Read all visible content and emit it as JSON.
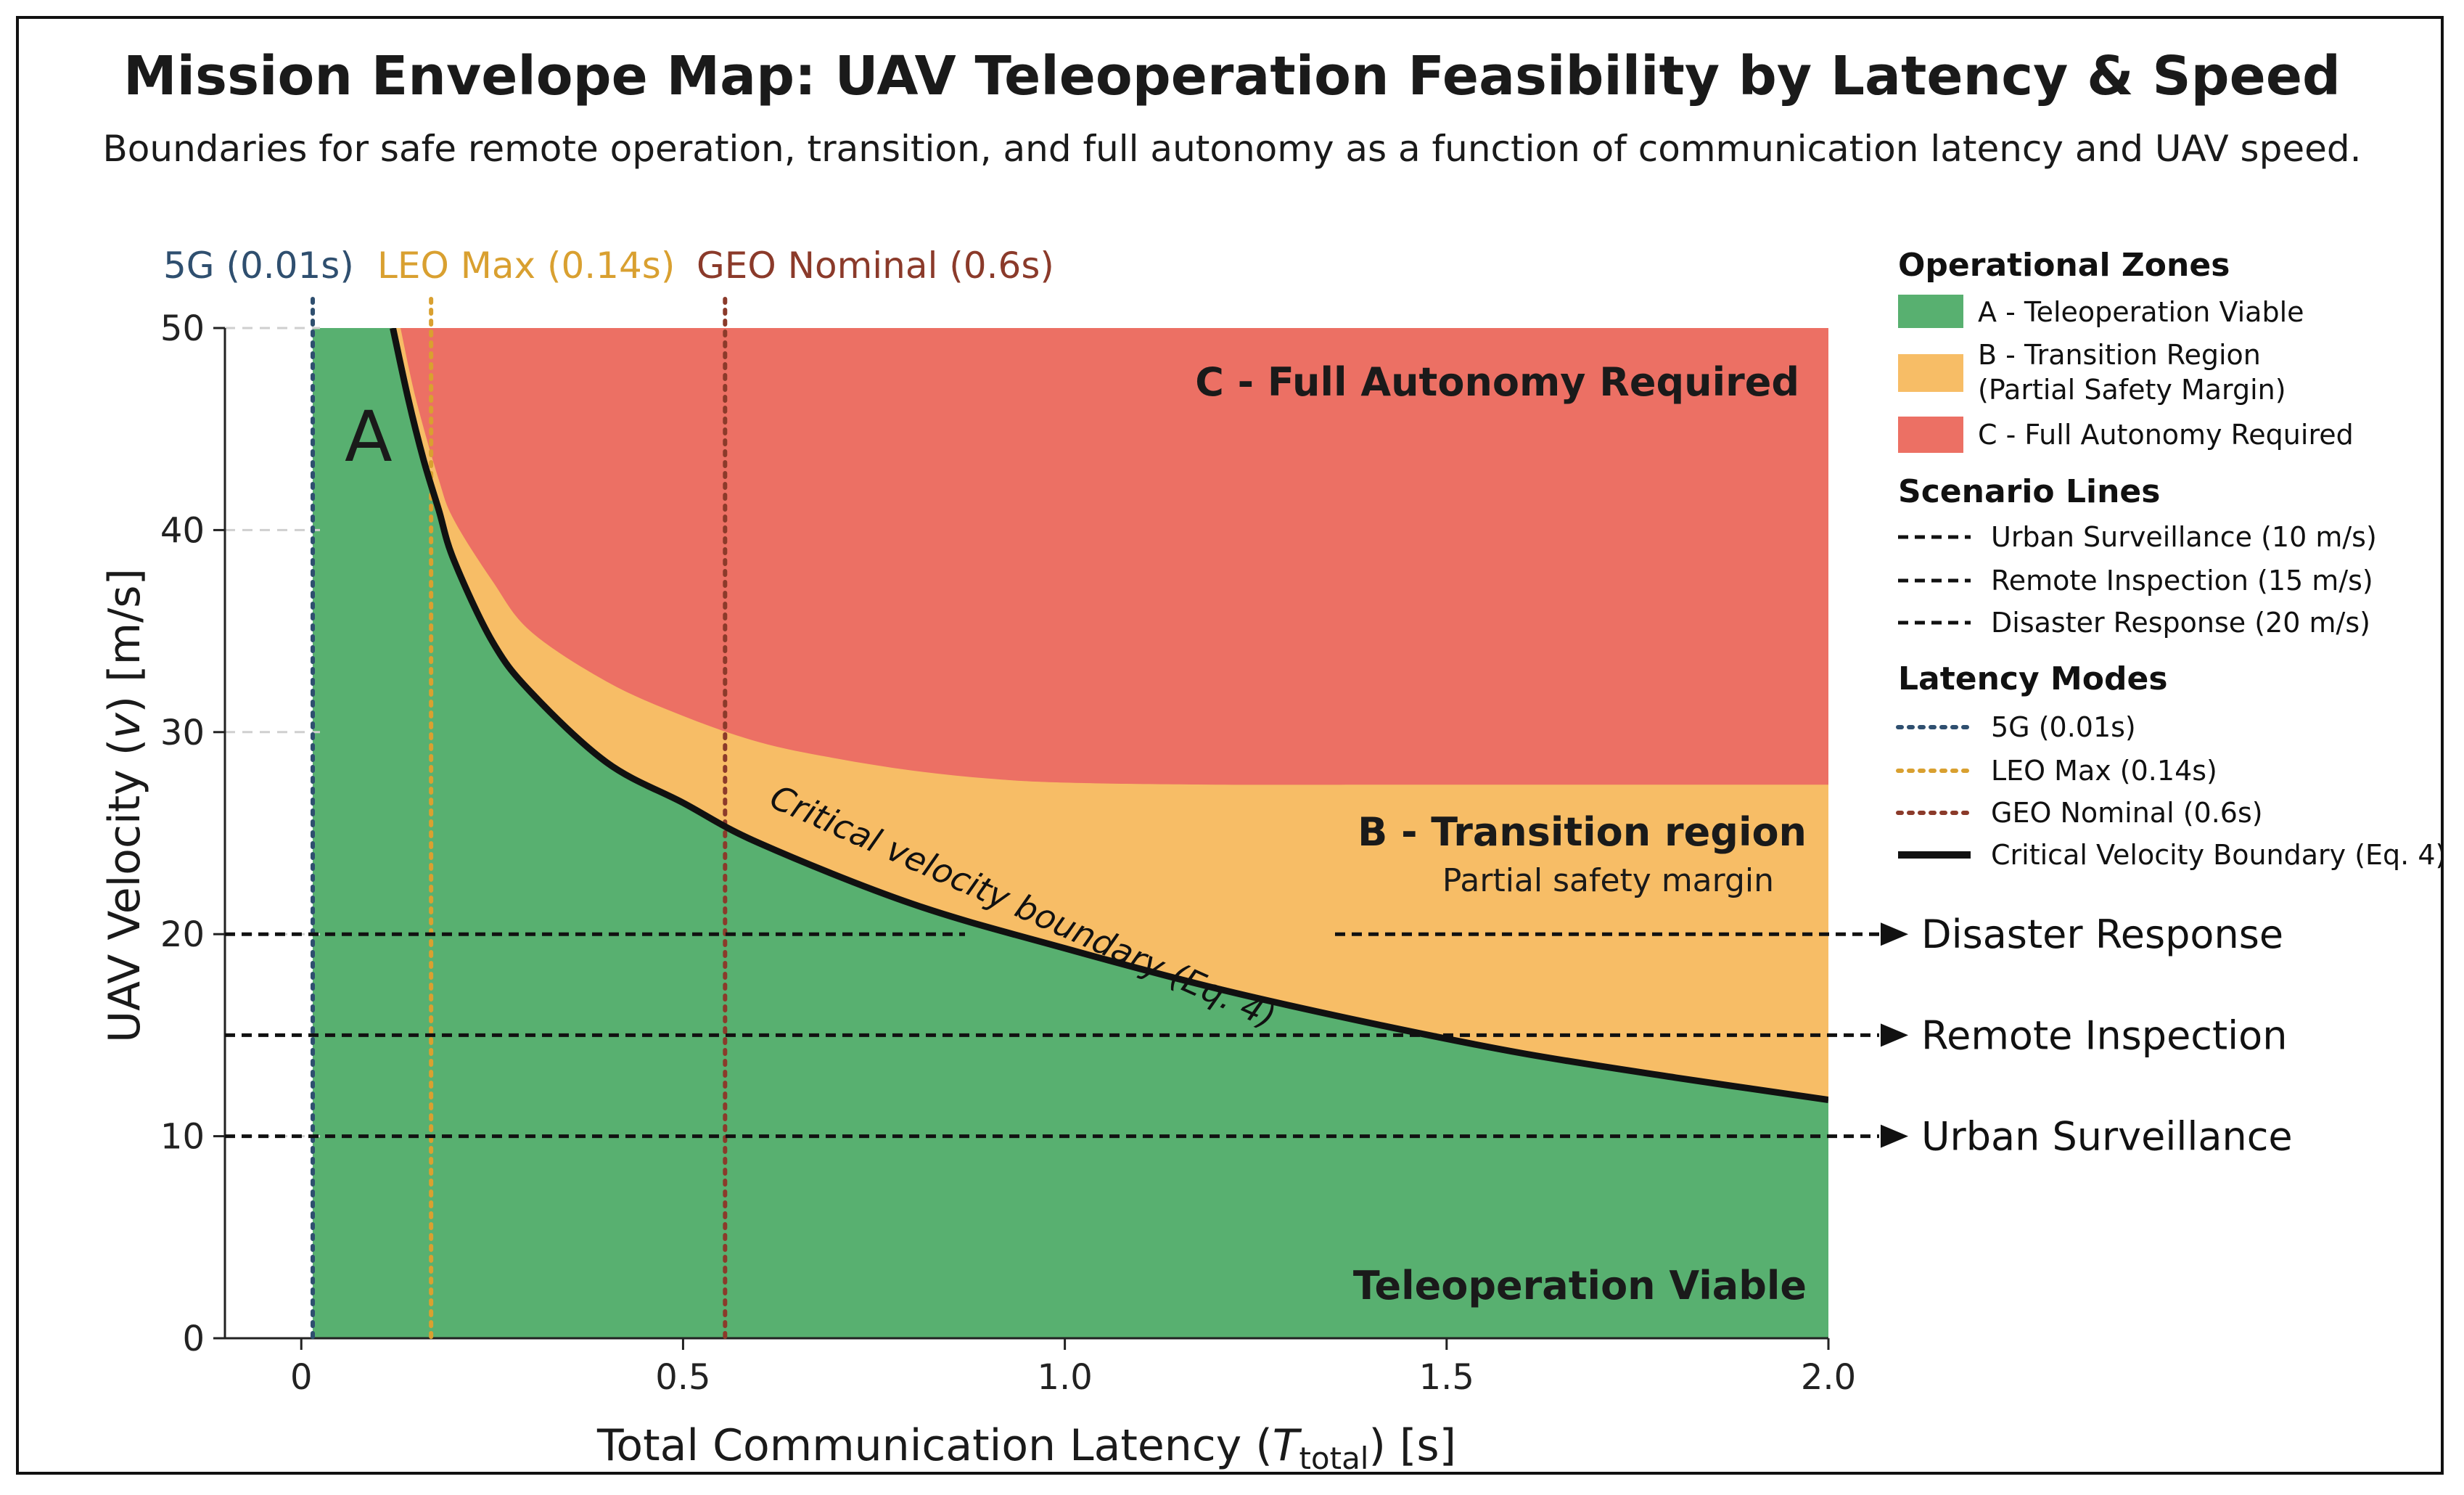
{
  "chart_data": {
    "type": "area",
    "title": "Mission Envelope Map: UAV Teleoperation Feasibility by Latency & Speed",
    "subtitle": "Boundaries for safe remote operation, transition, and full autonomy as a function of communication latency and UAV speed.",
    "xlabel_main": "Total Communication Latency (",
    "xlabel_var": "T",
    "xlabel_sub": "total",
    "xlabel_end": ") [s]",
    "ylabel_main": "UAV Velocity (",
    "ylabel_var": "v",
    "ylabel_end": ") [m/s]",
    "xlim": [
      -0.1,
      2.0
    ],
    "ylim": [
      0,
      50
    ],
    "xticks": [
      0,
      0.5,
      1.0,
      1.5,
      2.0
    ],
    "xtick_labels": [
      "0",
      "0.5",
      "1.0",
      "1.5",
      "2.0"
    ],
    "yticks": [
      0,
      10,
      20,
      30,
      40,
      50
    ],
    "ytick_labels": [
      "0",
      "10",
      "20",
      "30",
      "40",
      "50"
    ],
    "grid": "horizontal-dashed",
    "latency_modes": [
      {
        "name": "5G (0.01s)",
        "x": 0.015,
        "color": "#2f4f6f"
      },
      {
        "name": "LEO Max (0.14s)",
        "x": 0.17,
        "color": "#d9a030"
      },
      {
        "name": "GEO Nominal (0.6s)",
        "x": 0.555,
        "color": "#8b3a2a"
      }
    ],
    "critical_boundary": {
      "label": "Critical velocity boundary (Eq. 4)",
      "x": [
        0.12,
        0.14,
        0.16,
        0.18,
        0.2,
        0.25,
        0.3,
        0.4,
        0.5,
        0.6,
        0.8,
        1.0,
        1.2,
        1.4,
        1.6,
        1.8,
        2.0
      ],
      "y": [
        50,
        46.5,
        43.5,
        41,
        38.5,
        34.5,
        32,
        28.5,
        26.5,
        24.5,
        21.5,
        19.3,
        17.3,
        15.6,
        14.1,
        12.9,
        11.8
      ]
    },
    "transition_upper": {
      "x": [
        0.13,
        0.15,
        0.18,
        0.2,
        0.25,
        0.3,
        0.4,
        0.5,
        0.6,
        0.7,
        0.8,
        0.9,
        1.0,
        1.2,
        1.5,
        2.0
      ],
      "y": [
        50,
        46.5,
        42.5,
        40.5,
        37.5,
        35,
        32.5,
        30.8,
        29.5,
        28.7,
        28.1,
        27.7,
        27.5,
        27.4,
        27.4,
        27.4
      ]
    },
    "zones": [
      {
        "name": "A - Teleoperation Viable",
        "color": "#58b070"
      },
      {
        "name": "B - Transition Region",
        "name2": "(Partial Safety Margin)",
        "color": "#f7bd66"
      },
      {
        "name": "C - Full Autonomy Required",
        "color": "#ec7064"
      }
    ],
    "scenarios": [
      {
        "legend": "Urban Surveillance (10 m/s)",
        "label": "Urban Surveillance",
        "y": 10,
        "x_end": 2.1
      },
      {
        "legend": "Remote Inspection (15 m/s)",
        "label": "Remote Inspection",
        "y": 15,
        "x_end": 2.1
      },
      {
        "legend": "Disaster Response (20 m/s)",
        "label": "Disaster Response",
        "y": 20,
        "x_end": 2.1
      }
    ],
    "annotations": {
      "region_a": "A",
      "region_a_bottom": "Teleoperation Viable",
      "region_b": "B - Transition region",
      "region_b_sub": "Partial safety margin",
      "region_c": "C - Full Autonomy Required"
    },
    "legend": {
      "placement": "right",
      "heading_zones": "Operational Zones",
      "heading_scenarios": "Scenario Lines",
      "heading_latency": "Latency Modes",
      "latency_items": [
        "5G (0.01s)",
        "LEO Max (0.14s)",
        "GEO Nominal (0.6s)"
      ],
      "boundary_item": "Critical Velocity Boundary (Eq. 4)"
    }
  }
}
